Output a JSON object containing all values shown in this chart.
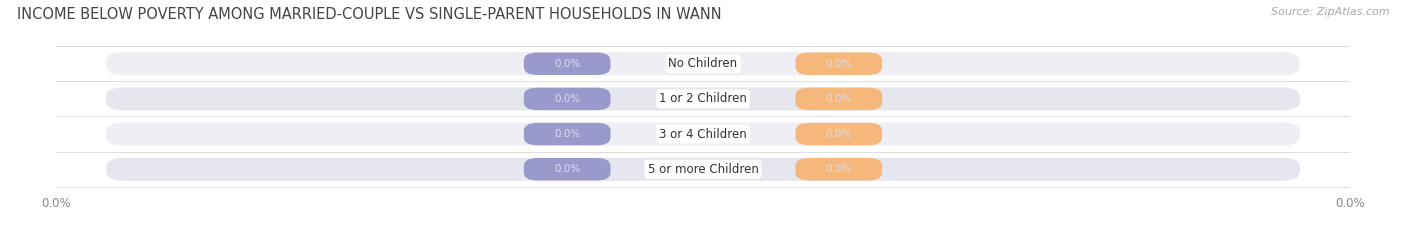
{
  "title": "INCOME BELOW POVERTY AMONG MARRIED-COUPLE VS SINGLE-PARENT HOUSEHOLDS IN WANN",
  "source": "Source: ZipAtlas.com",
  "categories": [
    "No Children",
    "1 or 2 Children",
    "3 or 4 Children",
    "5 or more Children"
  ],
  "married_values": [
    0.0,
    0.0,
    0.0,
    0.0
  ],
  "single_values": [
    0.0,
    0.0,
    0.0,
    0.0
  ],
  "married_color": "#9999cc",
  "single_color": "#f5b87a",
  "row_bg_color": "#ebebf0",
  "title_fontsize": 10.5,
  "source_fontsize": 8,
  "category_fontsize": 8.5,
  "value_fontsize": 7.5,
  "background_color": "#ffffff",
  "bar_height": 0.6,
  "value_label_color": "#ddddee",
  "category_text_color": "#333333",
  "tick_label_color": "#888888",
  "source_color": "#aaaaaa"
}
